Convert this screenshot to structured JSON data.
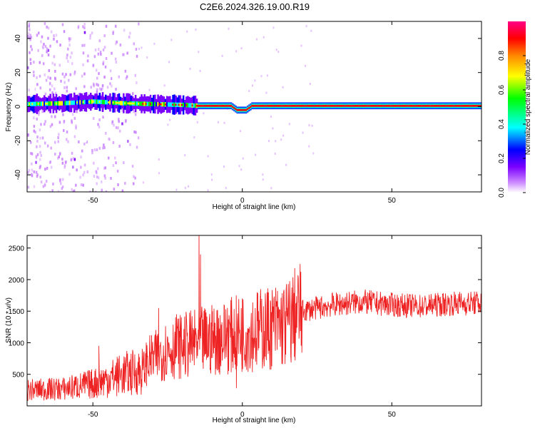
{
  "title": "C2E6.2024.326.19.00.R19",
  "chart_data": [
    {
      "type": "heatmap",
      "xlabel": "Height of straight line (km)",
      "ylabel": "Frequency (Hz)",
      "xlim": [
        -72,
        80
      ],
      "ylim": [
        -50,
        50
      ],
      "xticks": [
        -50,
        0,
        50
      ],
      "yticks": [
        -40,
        -20,
        0,
        20,
        40
      ],
      "colorbar": {
        "label": "Normalized spectral amplitude",
        "range": [
          0.0,
          1.0
        ],
        "ticks": [
          0.0,
          0.2,
          0.4,
          0.6,
          0.8
        ],
        "tick_labels": [
          "0.0",
          "0.2",
          "0.4",
          "0.6",
          "0.8"
        ]
      },
      "dominant_frequency": [
        {
          "x": -72,
          "freq": 1.5
        },
        {
          "x": -60,
          "freq": 2
        },
        {
          "x": -50,
          "freq": 3
        },
        {
          "x": -40,
          "freq": 2
        },
        {
          "x": -30,
          "freq": 1.5
        },
        {
          "x": -20,
          "freq": 1
        },
        {
          "x": -15,
          "freq": 0.5
        },
        {
          "x": -4,
          "freq": 0.5
        },
        {
          "x": -2,
          "freq": -2
        },
        {
          "x": 1,
          "freq": -2
        },
        {
          "x": 3,
          "freq": 0.5
        },
        {
          "x": 80,
          "freq": 0.5
        }
      ],
      "noise_region_x": [
        -72,
        -35
      ]
    },
    {
      "type": "line",
      "xlabel": "Height of straight line (km)",
      "ylabel": "SNR (10 * v/v)",
      "xlim": [
        -72,
        80
      ],
      "ylim": [
        0,
        2700
      ],
      "xticks": [
        -50,
        0,
        50
      ],
      "yticks": [
        500,
        1000,
        1500,
        2000,
        2500
      ],
      "series": [
        {
          "color": "#ee2222",
          "x": [
            -72,
            -60,
            -50,
            -40,
            -33,
            -32,
            -28,
            -25,
            -20,
            -15,
            -10,
            -5,
            0,
            5,
            10,
            15,
            18,
            20,
            30,
            40,
            50,
            60,
            70,
            80
          ],
          "y": [
            250,
            270,
            350,
            500,
            560,
            700,
            800,
            900,
            950,
            1000,
            1050,
            1100,
            1150,
            1200,
            1250,
            1300,
            1450,
            1500,
            1600,
            1650,
            1600,
            1580,
            1620,
            1630
          ]
        }
      ],
      "spikes": [
        {
          "x": -14.5,
          "y": 2700
        },
        {
          "x": -14,
          "y": 2400
        },
        {
          "x": -10,
          "y": 1500
        },
        {
          "x": -5,
          "y": 1550
        },
        {
          "x": 0,
          "y": 1700
        },
        {
          "x": -22,
          "y": 1450
        },
        {
          "x": -28,
          "y": 1550
        },
        {
          "x": -48,
          "y": 950
        },
        {
          "x": -2,
          "y": 280
        }
      ]
    }
  ],
  "colors": {
    "line": "#ee2222",
    "colormap": [
      "#ffffff",
      "#cc88ff",
      "#7a00ff",
      "#0000ff",
      "#00ffff",
      "#00ff00",
      "#ffff00",
      "#ff8800",
      "#ff0000",
      "#ff0088"
    ]
  }
}
